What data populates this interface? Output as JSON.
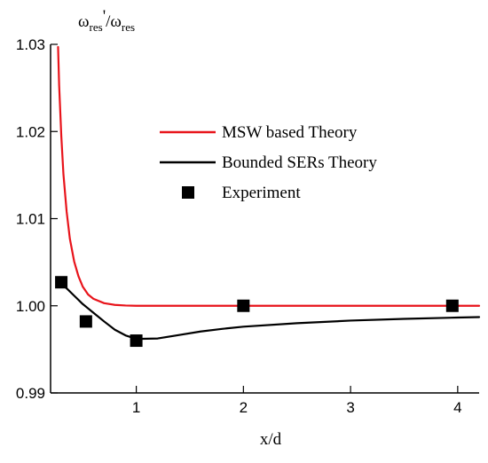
{
  "chart_data": {
    "type": "line",
    "xlabel": "x/d",
    "ylabel": {
      "omega": "ω",
      "sub": "res",
      "prime": "'",
      "slash": "/",
      "omega2": "ω",
      "sub2": "res"
    },
    "xlim": [
      0.2,
      4.2
    ],
    "ylim": [
      0.99,
      1.03
    ],
    "x_ticks": [
      1,
      2,
      3,
      4
    ],
    "x_tick_labels": [
      "1",
      "2",
      "3",
      "4"
    ],
    "y_ticks": [
      0.99,
      1.0,
      1.01,
      1.02,
      1.03
    ],
    "y_tick_labels": [
      "0.99",
      "1.00",
      "1.01",
      "1.02",
      "1.03"
    ],
    "legend_placement": "upper-right",
    "series": [
      {
        "name": "MSW based Theory",
        "kind": "line",
        "color": "#e8141b",
        "x": [
          0.27,
          0.28,
          0.3,
          0.32,
          0.35,
          0.38,
          0.42,
          0.46,
          0.5,
          0.55,
          0.6,
          0.7,
          0.8,
          0.9,
          1.0,
          1.5,
          2.0,
          2.5,
          3.0,
          3.5,
          4.0,
          4.2
        ],
        "y": [
          1.0297,
          1.0253,
          1.0195,
          1.0151,
          1.0108,
          1.0077,
          1.0051,
          1.0034,
          1.0022,
          1.0013,
          1.0008,
          1.0003,
          1.0001,
          1.00003,
          1.0,
          1.0,
          1.0,
          1.0,
          1.0,
          1.0,
          1.0,
          1.0
        ]
      },
      {
        "name": "Bounded SERs Theory",
        "kind": "line",
        "color": "#000000",
        "x": [
          0.27,
          0.3,
          0.35,
          0.4,
          0.45,
          0.5,
          0.55,
          0.6,
          0.7,
          0.8,
          0.9,
          1.0,
          1.2,
          1.4,
          1.6,
          1.8,
          2.0,
          2.5,
          3.0,
          3.5,
          4.0,
          4.2
        ],
        "y": [
          1.0027,
          1.0025,
          1.002,
          1.0014,
          1.0008,
          1.0002,
          0.9997,
          0.9992,
          0.9982,
          0.99725,
          0.9966,
          0.9962,
          0.99625,
          0.99665,
          0.99705,
          0.99735,
          0.9976,
          0.998,
          0.9983,
          0.9985,
          0.99865,
          0.9987
        ]
      },
      {
        "name": "Experiment",
        "kind": "scatter",
        "marker": "square",
        "color": "#000000",
        "x": [
          0.3,
          0.53,
          1.0,
          2.0,
          3.95
        ],
        "y": [
          1.0027,
          0.9982,
          0.996,
          1.0,
          1.0
        ]
      }
    ]
  }
}
